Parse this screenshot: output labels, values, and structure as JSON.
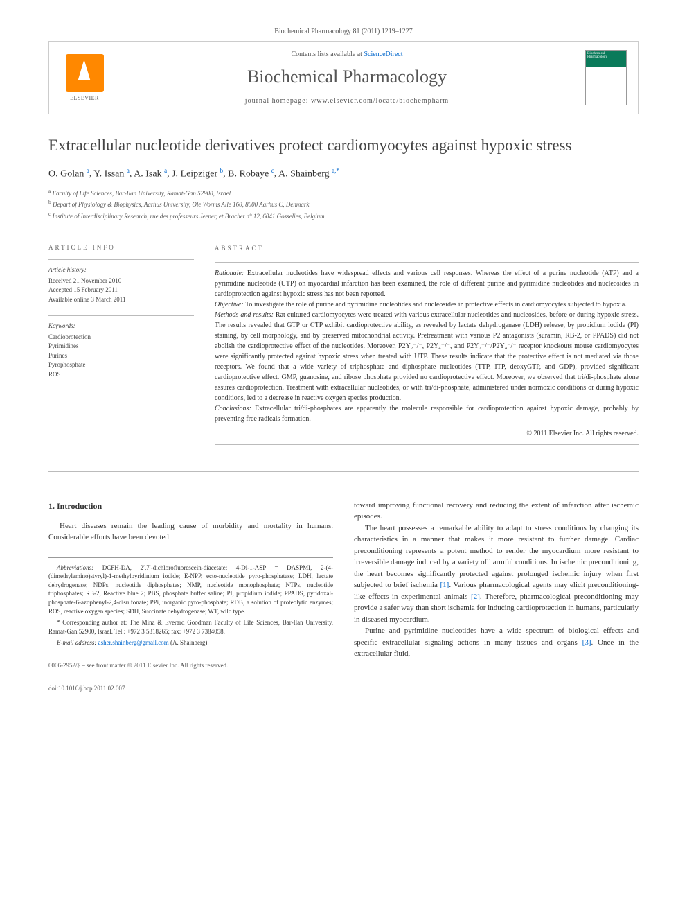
{
  "header": {
    "citation": "Biochemical Pharmacology 81 (2011) 1219–1227",
    "contents_prefix": "Contents lists available at ",
    "contents_link": "ScienceDirect",
    "journal_title": "Biochemical Pharmacology",
    "homepage_prefix": "journal homepage: ",
    "homepage_url": "www.elsevier.com/locate/biochempharm",
    "elsevier_label": "ELSEVIER",
    "cover_text": "Biochemical Pharmacology"
  },
  "article": {
    "title": "Extracellular nucleotide derivatives protect cardiomyocytes against hypoxic stress",
    "authors_html": "O. Golan <sup>a</sup>, Y. Issan <sup>a</sup>, A. Isak <sup>a</sup>, J. Leipziger <sup>b</sup>, B. Robaye <sup>c</sup>, A. Shainberg <sup>a,*</sup>",
    "affiliations": [
      {
        "sup": "a",
        "text": "Faculty of Life Sciences, Bar-Ilan University, Ramat-Gan 52900, Israel"
      },
      {
        "sup": "b",
        "text": "Depart of Physiology & Biophysics, Aarhus University, Ole Worms Alle 160, 8000 Aarhus C, Denmark"
      },
      {
        "sup": "c",
        "text": "Institute of Interdisciplinary Research, rue des professeurs Jeener, et Brachet n° 12, 6041 Gosselies, Belgium"
      }
    ]
  },
  "info": {
    "section_label": "ARTICLE INFO",
    "history_heading": "Article history:",
    "history": [
      "Received 21 November 2010",
      "Accepted 15 February 2011",
      "Available online 3 March 2011"
    ],
    "keywords_heading": "Keywords:",
    "keywords": [
      "Cardioprotection",
      "Pyrimidines",
      "Purines",
      "Pyrophosphate",
      "ROS"
    ]
  },
  "abstract": {
    "section_label": "ABSTRACT",
    "paragraphs": [
      {
        "label": "Rationale:",
        "text": " Extracellular nucleotides have widespread effects and various cell responses. Whereas the effect of a purine nucleotide (ATP) and a pyrimidine nucleotide (UTP) on myocardial infarction has been examined, the role of different purine and pyrimidine nucleotides and nucleosides in cardioprotection against hypoxic stress has not been reported."
      },
      {
        "label": "Objective:",
        "text": " To investigate the role of purine and pyrimidine nucleotides and nucleosides in protective effects in cardiomyocytes subjected to hypoxia."
      },
      {
        "label": "Methods and results:",
        "text": " Rat cultured cardiomyocytes were treated with various extracellular nucleotides and nucleosides, before or during hypoxic stress. The results revealed that GTP or CTP exhibit cardioprotective ability, as revealed by lactate dehydrogenase (LDH) release, by propidium iodide (PI) staining, by cell morphology, and by preserved mitochondrial activity. Pretreatment with various P2 antagonists (suramin, RB-2, or PPADS) did not abolish the cardioprotective effect of the nucleotides. Moreover, P2Y₂⁻/⁻, P2Y₄⁻/⁻, and P2Y₂⁻/⁻/P2Y₄⁻/⁻ receptor knockouts mouse cardiomyocytes were significantly protected against hypoxic stress when treated with UTP. These results indicate that the protective effect is not mediated via those receptors. We found that a wide variety of triphosphate and diphosphate nucleotides (TTP, ITP, deoxyGTP, and GDP), provided significant cardioprotective effect. GMP, guanosine, and ribose phosphate provided no cardioprotective effect. Moreover, we observed that tri/di-phosphate alone assures cardioprotection. Treatment with extracellular nucleotides, or with tri/di-phosphate, administered under normoxic conditions or during hypoxic conditions, led to a decrease in reactive oxygen species production."
      },
      {
        "label": "Conclusions:",
        "text": " Extracellular tri/di-phosphates are apparently the molecule responsible for cardioprotection against hypoxic damage, probably by preventing free radicals formation."
      }
    ],
    "copyright": "© 2011 Elsevier Inc. All rights reserved."
  },
  "body": {
    "intro_heading": "1. Introduction",
    "left_p1": "Heart diseases remain the leading cause of morbidity and mortality in humans. Considerable efforts have been devoted",
    "right_p1": "toward improving functional recovery and reducing the extent of infarction after ischemic episodes.",
    "right_p2": "The heart possesses a remarkable ability to adapt to stress conditions by changing its characteristics in a manner that makes it more resistant to further damage. Cardiac preconditioning represents a potent method to render the myocardium more resistant to irreversible damage induced by a variety of harmful conditions. In ischemic preconditioning, the heart becomes significantly protected against prolonged ischemic injury when first subjected to brief ischemia [1]. Various pharmacological agents may elicit preconditioning-like effects in experimental animals [2]. Therefore, pharmacological preconditioning may provide a safer way than short ischemia for inducing cardioprotection in humans, particularly in diseased myocardium.",
    "right_p3": "Purine and pyrimidine nucleotides have a wide spectrum of biological effects and specific extracellular signaling actions in many tissues and organs [3]. Once in the extracellular fluid,"
  },
  "footnotes": {
    "abbrev_label": "Abbreviations:",
    "abbrev_text": " DCFH-DA, 2′,7′-dichlorofluorescein-diacetate; 4-Di-1-ASP = DASPMI, 2-(4-(dimethylamino)styryl)-1-methylpyridinium iodide; E-NPP, ecto-nucleotide pyro-phosphatase; LDH, lactate dehydrogenase; NDPs, nucleotide diphosphates; NMP, nucleotide monophosphate; NTPs, nucleotide triphosphates; RB-2, Reactive blue 2; PBS, phosphate buffer saline; PI, propidium iodide; PPADS, pyridoxal-phosphate-6-azophenyl-2,4-disulfonate; PPi, inorganic pyro-phosphate; RDB, a solution of proteolytic enzymes; ROS, reactive oxygen species; SDH, Succinate dehydrogenase; WT, wild type.",
    "corresponding": "* Corresponding author at: The Mina & Everard Goodman Faculty of Life Sciences, Bar-Ilan University, Ramat-Gan 52900, Israel. Tel.: +972 3 5318265; fax: +972 3 7384058.",
    "email_label": "E-mail address:",
    "email": " asher.shainberg@gmail.com",
    "email_suffix": " (A. Shainberg)."
  },
  "footer": {
    "issn_line": "0006-2952/$ – see front matter © 2011 Elsevier Inc. All rights reserved.",
    "doi_line": "doi:10.1016/j.bcp.2011.02.007"
  },
  "colors": {
    "link": "#0066cc",
    "text": "#333333",
    "muted": "#555555",
    "border": "#bbbbbb",
    "elsevier_orange": "#ff8800",
    "cover_green": "#0a7a5a"
  }
}
